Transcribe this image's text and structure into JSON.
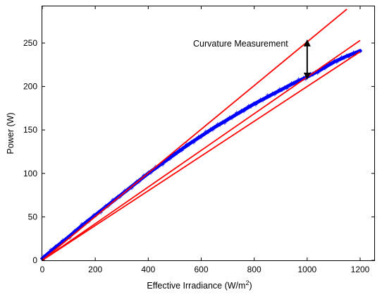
{
  "chart_data": {
    "type": "scatter",
    "xlabel": "Effective Irradiance (W/m",
    "xlabel_superscript": "2",
    "xlabel_suffix": ")",
    "ylabel": "Power (W)",
    "xlim": [
      0,
      1240
    ],
    "ylim": [
      0,
      290
    ],
    "xticks": [
      0,
      200,
      400,
      600,
      800,
      1000,
      1200
    ],
    "yticks": [
      0,
      50,
      100,
      150,
      200,
      250
    ],
    "grid": false,
    "series": [
      {
        "kind": "measured-points",
        "color": "#0000ff",
        "marker": "plus",
        "x": [
          0,
          25,
          50,
          75,
          100,
          150,
          200,
          250,
          300,
          350,
          400,
          450,
          500,
          550,
          600,
          650,
          700,
          750,
          800,
          850,
          900,
          950,
          1000,
          1050,
          1100,
          1150,
          1200
        ],
        "y": [
          2,
          8.5,
          15,
          21,
          27,
          40,
          52,
          64,
          76,
          88,
          100,
          111,
          122,
          133,
          143,
          153,
          162,
          171,
          180,
          188,
          196,
          204,
          211,
          219,
          228,
          235,
          241
        ]
      },
      {
        "kind": "upper-reference-line",
        "color": "#ff0000",
        "x": [
          0,
          1150
        ],
        "y": [
          0,
          289
        ]
      },
      {
        "kind": "lower-reference-line",
        "color": "#ff0000",
        "x": [
          0,
          1200
        ],
        "y": [
          0,
          253
        ]
      },
      {
        "kind": "fit-curve",
        "color": "#ff0000",
        "x": [
          0,
          1200
        ],
        "y": [
          0,
          240
        ]
      }
    ],
    "annotations": [
      {
        "text": "Curvature Measurement",
        "arrow_x": 1000,
        "arrow_y_top": 251,
        "arrow_y_bottom": 211,
        "color": "#000000"
      }
    ]
  }
}
